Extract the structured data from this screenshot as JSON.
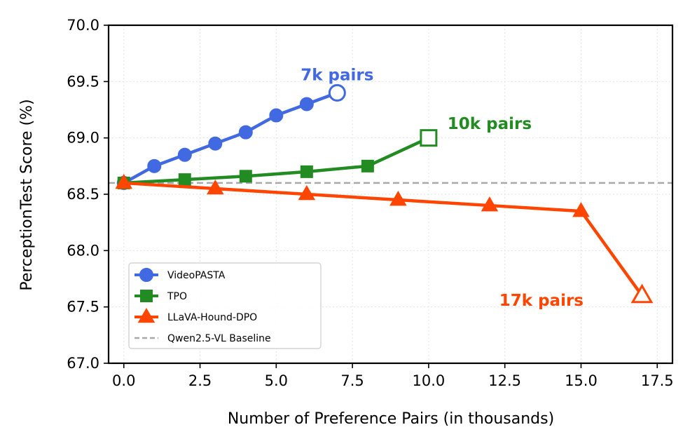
{
  "chart_data": {
    "type": "line",
    "xlabel": "Number of Preference Pairs (in thousands)",
    "ylabel": "PerceptionTest Score (%)",
    "xlim": [
      -0.5,
      18.0
    ],
    "ylim": [
      67.0,
      70.0
    ],
    "xticks": [
      0.0,
      2.5,
      5.0,
      7.5,
      10.0,
      12.5,
      15.0,
      17.5
    ],
    "xtick_labels": [
      "0.0",
      "2.5",
      "5.0",
      "7.5",
      "10.0",
      "12.5",
      "15.0",
      "17.5"
    ],
    "yticks": [
      67.0,
      67.5,
      68.0,
      68.5,
      69.0,
      69.5,
      70.0
    ],
    "ytick_labels": [
      "67.0",
      "67.5",
      "68.0",
      "68.5",
      "69.0",
      "69.5",
      "70.0"
    ],
    "grid": true,
    "legend_position": "lower-left",
    "series": [
      {
        "name": "VideoPASTA",
        "color": "#4169e1",
        "marker": "circle",
        "x": [
          0,
          1,
          2,
          3,
          4,
          5,
          6,
          7
        ],
        "y": [
          68.6,
          68.75,
          68.85,
          68.95,
          69.05,
          69.2,
          69.3,
          69.4
        ]
      },
      {
        "name": "TPO",
        "color": "#228b22",
        "marker": "square",
        "x": [
          0,
          2,
          4,
          6,
          8,
          10
        ],
        "y": [
          68.6,
          68.63,
          68.66,
          68.7,
          68.75,
          69.0
        ]
      },
      {
        "name": "LLaVA-Hound-DPO",
        "color": "#ff4500",
        "marker": "triangle",
        "x": [
          0,
          3,
          6,
          9,
          12,
          15,
          17
        ],
        "y": [
          68.6,
          68.55,
          68.5,
          68.45,
          68.4,
          68.35,
          67.6
        ]
      }
    ],
    "baseline": {
      "name": "Qwen2.5-VL Baseline",
      "y": 68.6,
      "color": "#a9a9a9"
    },
    "annotations": [
      {
        "text": "7k pairs",
        "color": "#4169e1",
        "x": 7.0,
        "y": 69.56
      },
      {
        "text": "10k pairs",
        "color": "#228b22",
        "x": 12.0,
        "y": 69.13
      },
      {
        "text": "17k pairs",
        "color": "#ff4500",
        "x": 13.7,
        "y": 67.56
      }
    ]
  }
}
